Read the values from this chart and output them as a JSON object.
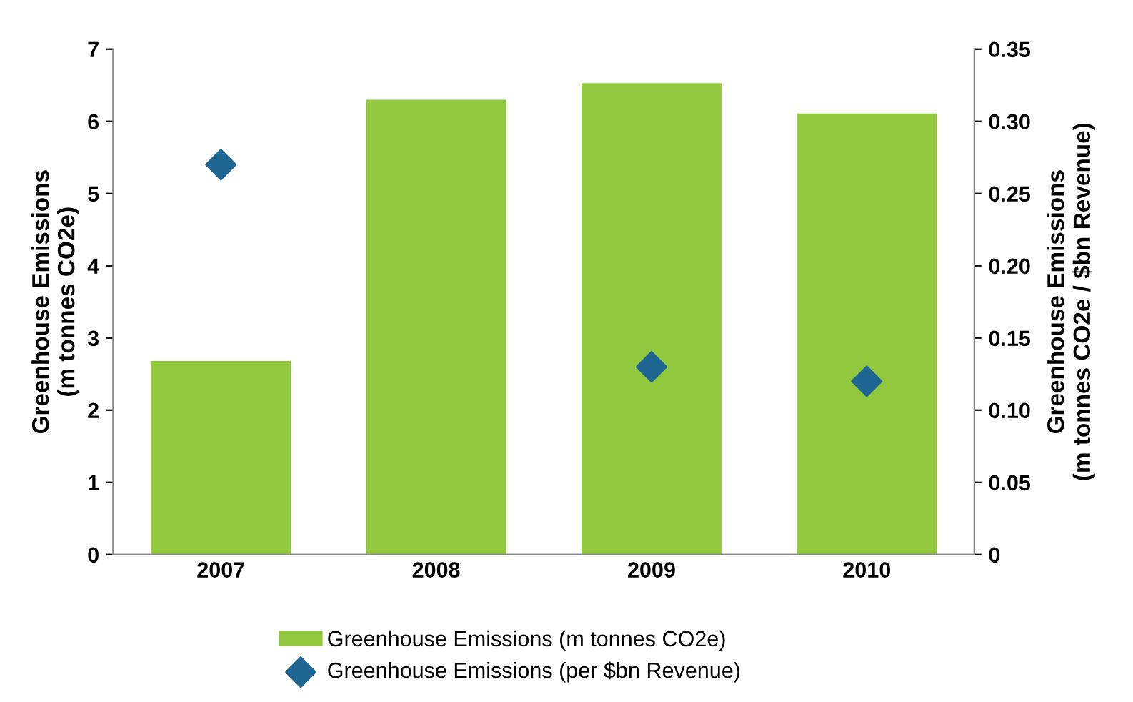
{
  "chart_data": {
    "type": "bar",
    "categories": [
      "2007",
      "2008",
      "2009",
      "2010"
    ],
    "ylabel": "Greenhouse Emissions\n(m tonnes CO2e)",
    "y2label": "Greenhouse Emissions\n(m tonnes CO2e / $bn Revenue)",
    "series": [
      {
        "name": "Greenhouse Emissions (m tonnes CO2e)",
        "color": "#92c83e",
        "values": [
          2.68,
          6.3,
          6.53,
          6.11
        ]
      },
      {
        "name": "Greenhouse Emissions (per $bn Revenue)",
        "type": "scatter",
        "axis": "y2",
        "marker": "diamond",
        "color": "#1f6591",
        "values": [
          0.27,
          null,
          0.13,
          0.12
        ]
      }
    ],
    "ylim": [
      0,
      7
    ],
    "yticks": [
      0,
      1,
      2,
      3,
      4,
      5,
      6,
      7
    ],
    "y2lim": [
      0,
      0.35
    ],
    "y2ticks": [
      {
        "value": 0,
        "label": "0"
      },
      {
        "value": 0.05,
        "label": "0.05"
      },
      {
        "value": 0.1,
        "label": "0.10"
      },
      {
        "value": 0.15,
        "label": "0.15"
      },
      {
        "value": 0.2,
        "label": "0.20"
      },
      {
        "value": 0.25,
        "label": "0.25"
      },
      {
        "value": 0.3,
        "label": "0.30"
      },
      {
        "value": 0.35,
        "label": "0.35"
      }
    ],
    "legend": "bottom",
    "grid": false
  }
}
